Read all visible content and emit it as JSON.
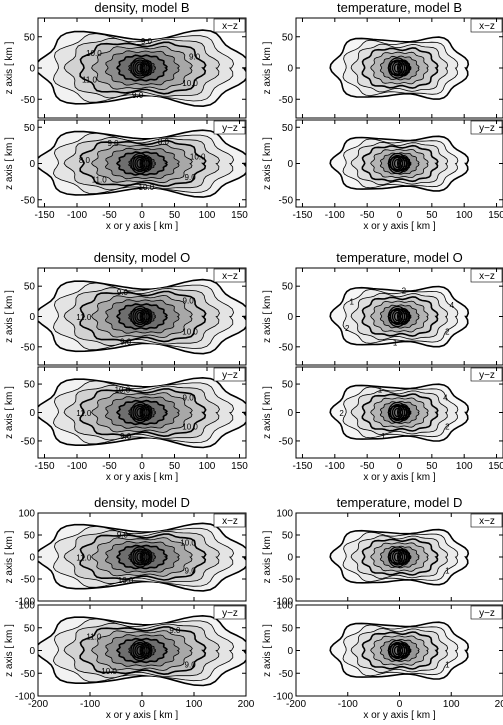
{
  "figure": {
    "panels": [
      {
        "id": "density-B",
        "title": "density, model B",
        "kind": "density",
        "xrange": [
          -160,
          160
        ],
        "xticks": [
          -150,
          -100,
          -50,
          0,
          50,
          100,
          150
        ],
        "xlabel": "x or y axis [ km ]",
        "subplots": [
          {
            "label": "x−z",
            "ylabel": "z axis [ km ]",
            "yrange": [
              -80,
              80
            ],
            "yticks": [
              50,
              0,
              -50
            ],
            "contour_labels": [
              "10.0",
              "9.0",
              "11.0",
              "10.0",
              "9.0",
              "9.0"
            ]
          },
          {
            "label": "y−z",
            "ylabel": "z axis [ km ]",
            "yrange": [
              -60,
              60
            ],
            "yticks": [
              50,
              0,
              -50
            ],
            "contour_labels": [
              "9.0",
              "10.0",
              "11.0",
              "8.0",
              "9.0",
              "8.0",
              "10.0"
            ]
          }
        ]
      },
      {
        "id": "temperature-B",
        "title": "temperature, model B",
        "kind": "temperature",
        "xrange": [
          -160,
          160
        ],
        "xticks": [
          -150,
          -100,
          -50,
          0,
          50,
          100,
          150
        ],
        "xlabel": "x or y axis [ km ]",
        "subplots": [
          {
            "label": "x−z",
            "ylabel": "z axis [ km ]",
            "yrange": [
              -80,
              80
            ],
            "yticks": [
              50,
              0,
              -50
            ],
            "contour_labels": []
          },
          {
            "label": "y−z",
            "ylabel": "z axis [ km ]",
            "yrange": [
              -60,
              60
            ],
            "yticks": [
              50,
              0,
              -50
            ],
            "contour_labels": []
          }
        ]
      },
      {
        "id": "density-O",
        "title": "density, model O",
        "kind": "density",
        "xrange": [
          -160,
          160
        ],
        "xticks": [
          -150,
          -100,
          -50,
          0,
          50,
          100,
          150
        ],
        "xlabel": "x or y axis [ km ]",
        "subplots": [
          {
            "label": "x−z",
            "ylabel": "z axis [ km ]",
            "yrange": [
              -80,
              80
            ],
            "yticks": [
              50,
              0,
              -50
            ],
            "contour_labels": [
              "10.0",
              "9.0",
              "11.0",
              "9.0",
              "9.0"
            ]
          },
          {
            "label": "y−z",
            "ylabel": "z axis [ km ]",
            "yrange": [
              -80,
              80
            ],
            "yticks": [
              50,
              0,
              -50
            ],
            "contour_labels": [
              "10.0",
              "9.0",
              "11.0",
              "10.0",
              "9.0"
            ]
          }
        ]
      },
      {
        "id": "temperature-O",
        "title": "temperature, model O",
        "kind": "temperature",
        "xrange": [
          -160,
          160
        ],
        "xticks": [
          -150,
          -100,
          -50,
          0,
          50,
          100,
          150
        ],
        "xlabel": "x or y axis [ km ]",
        "subplots": [
          {
            "label": "x−z",
            "ylabel": "z axis [ km ]",
            "yrange": [
              -80,
              80
            ],
            "yticks": [
              50,
              0,
              -50
            ],
            "contour_labels": [
              "2",
              "1",
              "2",
              "1",
              "2",
              "4"
            ]
          },
          {
            "label": "y−z",
            "ylabel": "z axis [ km ]",
            "yrange": [
              -80,
              80
            ],
            "yticks": [
              50,
              0,
              -50
            ],
            "contour_labels": [
              "2",
              "1",
              "2",
              "1",
              "4"
            ]
          }
        ]
      },
      {
        "id": "density-D",
        "title": "density, model D",
        "kind": "density",
        "xrange": [
          -200,
          200
        ],
        "xticks": [
          -200,
          -100,
          0,
          100,
          200
        ],
        "xlabel": "x or y axis [ km ]",
        "subplots": [
          {
            "label": "x−z",
            "ylabel": "z axis [ km ]",
            "yrange": [
              -100,
              100
            ],
            "yticks": [
              100,
              50,
              0,
              -50,
              -100
            ],
            "contour_labels": [
              "9.0",
              "10.0",
              "11.0",
              "9.0",
              "10.0"
            ]
          },
          {
            "label": "y−z",
            "ylabel": "z axis [ km ]",
            "yrange": [
              -100,
              100
            ],
            "yticks": [
              100,
              50,
              0,
              -50,
              -100
            ],
            "contour_labels": [
              "9.0",
              "10.0",
              "11.0",
              "9.0"
            ]
          }
        ]
      },
      {
        "id": "temperature-D",
        "title": "temperature, model D",
        "kind": "temperature",
        "xrange": [
          -200,
          200
        ],
        "xticks": [
          -200,
          -100,
          0,
          100,
          200
        ],
        "xlabel": "x or y axis [ km ]",
        "subplots": [
          {
            "label": "x−z",
            "ylabel": "z axis [ km ]",
            "yrange": [
              -100,
              100
            ],
            "yticks": [
              100,
              50,
              0,
              -50,
              -100
            ],
            "contour_labels": [
              "1"
            ]
          },
          {
            "label": "y−z",
            "ylabel": "z axis [ km ]",
            "yrange": [
              -100,
              100
            ],
            "yticks": [
              100,
              50,
              0,
              -50,
              -100
            ],
            "contour_labels": [
              "1"
            ]
          }
        ]
      }
    ]
  }
}
